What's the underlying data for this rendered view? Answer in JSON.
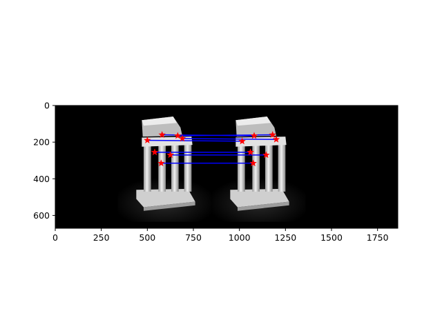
{
  "chart_data": {
    "type": "scatter",
    "image_kind": "grayscale stereo image pair (temple model) with matched feature points",
    "xlim": [
      0,
      1860
    ],
    "ylim": [
      670,
      0
    ],
    "x_ticks": [
      0,
      250,
      500,
      750,
      1000,
      1250,
      1500,
      1750
    ],
    "y_ticks": [
      0,
      200,
      400,
      600
    ],
    "x_tick_labels": [
      "0",
      "250",
      "500",
      "750",
      "1000",
      "1250",
      "1500",
      "1750"
    ],
    "y_tick_labels": [
      "0",
      "200",
      "400",
      "600"
    ],
    "grid": false,
    "legend": "none",
    "marker_color": "#ff0000",
    "line_color": "#0000ff",
    "background_color": "#000000",
    "series": [
      {
        "marker": "star",
        "color": "#ff0000",
        "points_left": [
          [
            580,
            160
          ],
          [
            665,
            165
          ],
          [
            500,
            190
          ],
          [
            540,
            255
          ],
          [
            625,
            270
          ],
          [
            575,
            315
          ],
          [
            690,
            180
          ]
        ],
        "points_right": [
          [
            1080,
            165
          ],
          [
            1180,
            160
          ],
          [
            1200,
            185
          ],
          [
            1015,
            195
          ],
          [
            1060,
            255
          ],
          [
            1145,
            270
          ],
          [
            1075,
            315
          ]
        ]
      }
    ],
    "matches": [
      [
        [
          580,
          160
        ],
        [
          1080,
          165
        ]
      ],
      [
        [
          665,
          165
        ],
        [
          1180,
          160
        ]
      ],
      [
        [
          690,
          180
        ],
        [
          1200,
          185
        ]
      ],
      [
        [
          500,
          190
        ],
        [
          1015,
          195
        ]
      ],
      [
        [
          540,
          255
        ],
        [
          1060,
          255
        ]
      ],
      [
        [
          625,
          270
        ],
        [
          1145,
          270
        ]
      ],
      [
        [
          575,
          315
        ],
        [
          1075,
          315
        ]
      ]
    ]
  }
}
